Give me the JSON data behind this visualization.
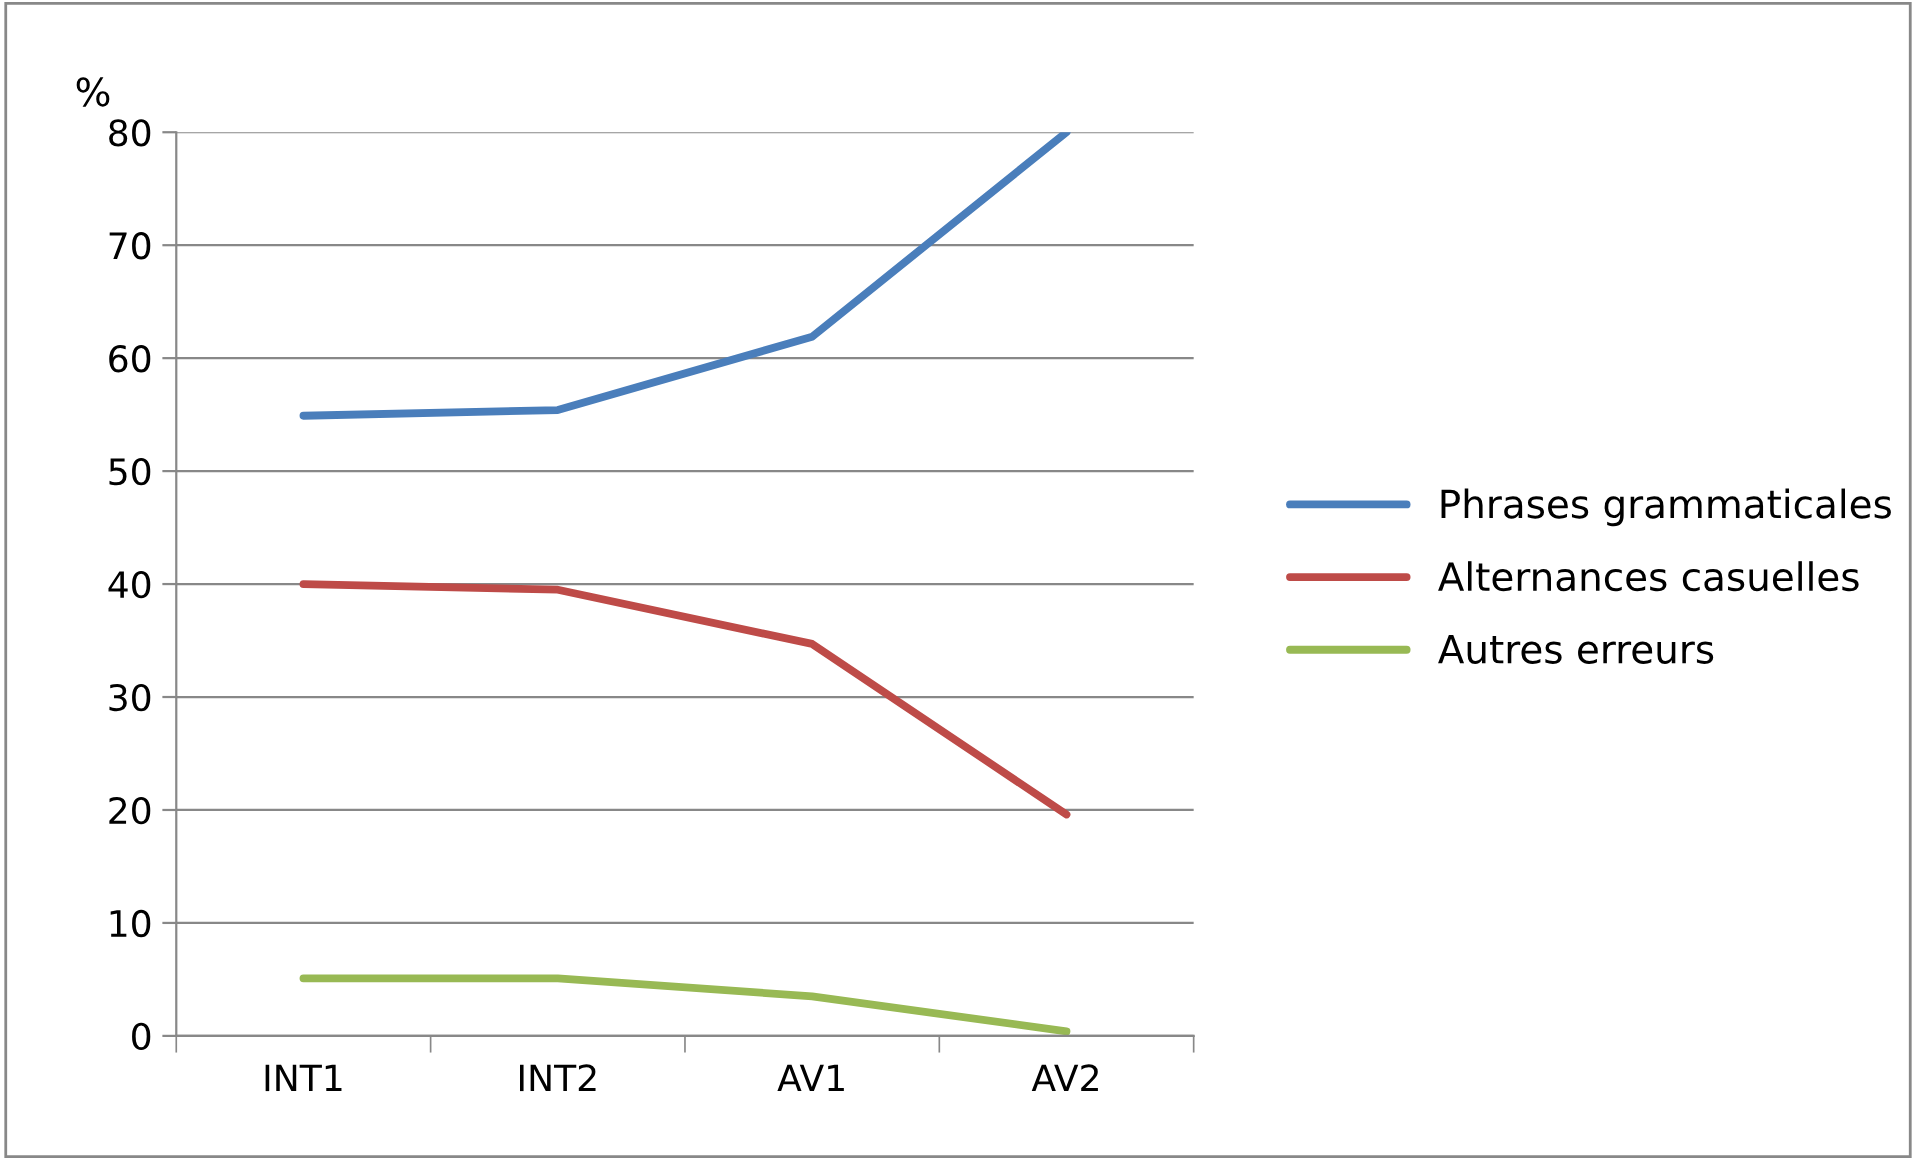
{
  "chart_data": {
    "type": "line",
    "ylabel": "%",
    "categories": [
      "INT1",
      "INT2",
      "AV1",
      "AV2"
    ],
    "series": [
      {
        "name": "Phrases grammaticales",
        "color": "#4a7ebb",
        "values": [
          54.9,
          55.4,
          61.9,
          80
        ]
      },
      {
        "name": "Alternances casuelles",
        "color": "#be4b48",
        "values": [
          40.0,
          39.5,
          34.7,
          19.6
        ]
      },
      {
        "name": "Autres erreurs",
        "color": "#98b954",
        "values": [
          5.1,
          5.1,
          3.5,
          0.4
        ]
      }
    ],
    "ylim": [
      0,
      80
    ],
    "yticks": [
      0,
      10,
      20,
      30,
      40,
      50,
      60,
      70,
      80
    ],
    "grid": "y",
    "legend": "right",
    "marker": "none",
    "line_style": "solid"
  }
}
